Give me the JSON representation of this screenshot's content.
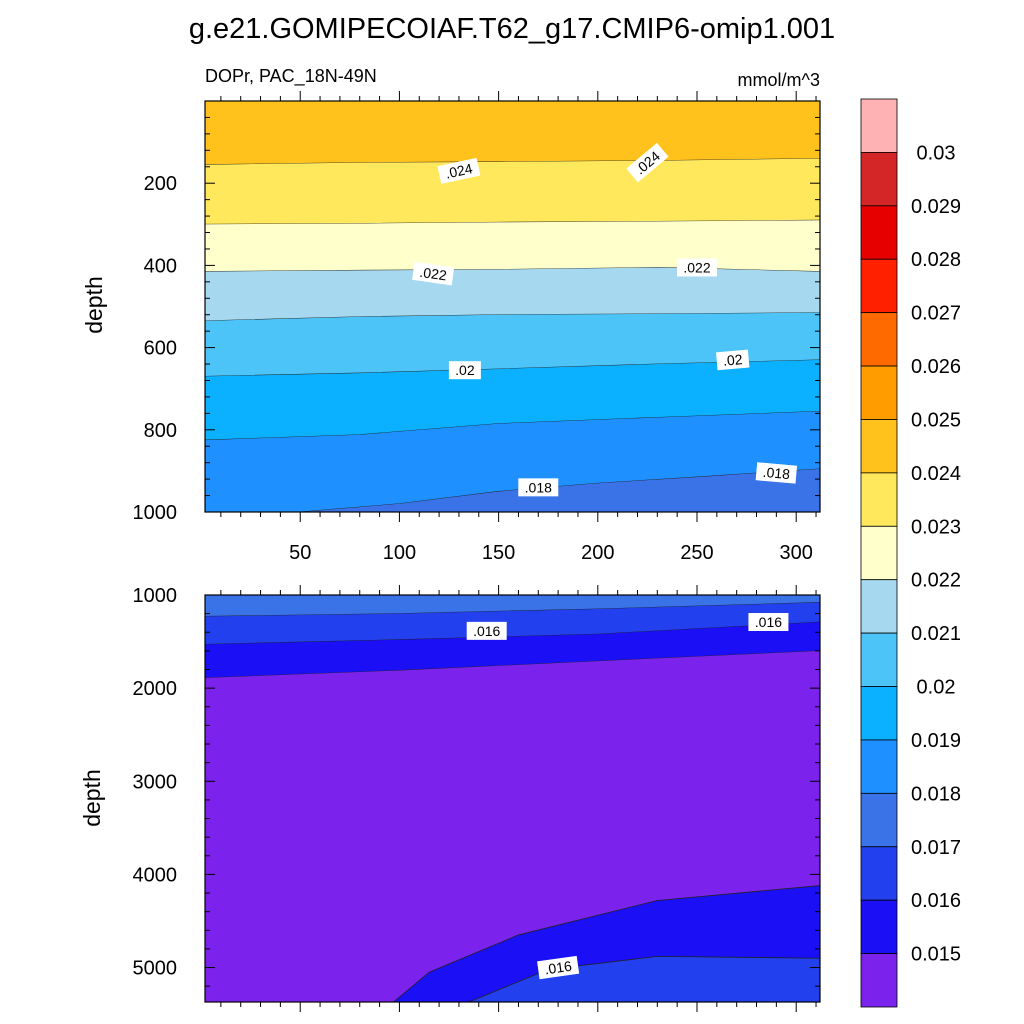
{
  "figure": {
    "title": "g.e21.GOMIPECOIAF.T62_g17.CMIP6-omip1.001"
  },
  "chart_data": {
    "type": "contour",
    "variable_label": "DOPr, PAC_18N-49N",
    "units_label": "mmol/m^3",
    "ylabel": "depth",
    "x_range": [
      2,
      312
    ],
    "x_ticks": [
      "50",
      "100",
      "150",
      "200",
      "250",
      "300"
    ],
    "x_tick_values": [
      50,
      100,
      150,
      200,
      250,
      300
    ],
    "colorbar": {
      "labels": [
        "0.03",
        "0.029",
        "0.028",
        "0.027",
        "0.026",
        "0.025",
        "0.024",
        "0.023",
        "0.022",
        "0.021",
        "0.02",
        "0.019",
        "0.018",
        "0.017",
        "0.016",
        "0.015"
      ],
      "colors": [
        "#ffb2b4",
        "#d42626",
        "#e60000",
        "#ff2000",
        "#ff6a00",
        "#ff9d00",
        "#ffc21c",
        "#ffe85c",
        "#ffffcc",
        "#a6d8ef",
        "#4dc4f7",
        "#0bb0ff",
        "#1e90ff",
        "#3a72e8",
        "#2240ee",
        "#1a0ff5",
        "#7b22ec"
      ]
    },
    "panels": [
      {
        "name": "upper",
        "y_range": [
          0,
          1000
        ],
        "y_ticks": [
          "200",
          "400",
          "600",
          "800",
          "1000"
        ],
        "y_tick_values": [
          200,
          400,
          600,
          800,
          1000
        ],
        "bands": [
          {
            "color": "#ffc21c",
            "lower_boundary": [
              [
                2,
                155
              ],
              [
                80,
                150
              ],
              [
                150,
                148
              ],
              [
                230,
                145
              ],
              [
                312,
                140
              ]
            ]
          },
          {
            "color": "#ffe85c",
            "lower_boundary": [
              [
                2,
                300
              ],
              [
                80,
                298
              ],
              [
                150,
                295
              ],
              [
                230,
                293
              ],
              [
                312,
                290
              ]
            ]
          },
          {
            "color": "#ffffcc",
            "lower_boundary": [
              [
                2,
                415
              ],
              [
                80,
                412
              ],
              [
                150,
                410
              ],
              [
                230,
                405
              ],
              [
                312,
                415
              ]
            ]
          },
          {
            "color": "#a6d8ef",
            "lower_boundary": [
              [
                2,
                535
              ],
              [
                80,
                525
              ],
              [
                150,
                520
              ],
              [
                230,
                518
              ],
              [
                312,
                515
              ]
            ]
          },
          {
            "color": "#4dc4f7",
            "lower_boundary": [
              [
                2,
                670
              ],
              [
                80,
                662
              ],
              [
                150,
                652
              ],
              [
                230,
                640
              ],
              [
                312,
                630
              ]
            ]
          },
          {
            "color": "#0bb0ff",
            "lower_boundary": [
              [
                2,
                825
              ],
              [
                80,
                812
              ],
              [
                150,
                785
              ],
              [
                230,
                770
              ],
              [
                312,
                755
              ]
            ]
          },
          {
            "color": "#1e90ff",
            "lower_boundary": [
              [
                2,
                1000
              ],
              [
                50,
                1000
              ],
              [
                100,
                980
              ],
              [
                150,
                950
              ],
              [
                200,
                930
              ],
              [
                250,
                915
              ],
              [
                312,
                895
              ]
            ]
          },
          {
            "color": "#3a72e8",
            "lower_boundary": null
          }
        ],
        "labels": [
          {
            "text": ".024",
            "x": 130,
            "y": 170,
            "angle": -12
          },
          {
            "text": ".024",
            "x": 225,
            "y": 150,
            "angle": -40
          },
          {
            "text": ".022",
            "x": 117,
            "y": 420,
            "angle": 8
          },
          {
            "text": ".022",
            "x": 250,
            "y": 405,
            "angle": 0
          },
          {
            "text": ".02",
            "x": 133,
            "y": 655,
            "angle": 0
          },
          {
            "text": ".02",
            "x": 268,
            "y": 630,
            "angle": -5
          },
          {
            "text": ".018",
            "x": 170,
            "y": 940,
            "angle": 0
          },
          {
            "text": ".018",
            "x": 290,
            "y": 905,
            "angle": 5
          }
        ]
      },
      {
        "name": "lower",
        "y_range": [
          1000,
          5370
        ],
        "y_ticks": [
          "1000",
          "2000",
          "3000",
          "4000",
          "5000"
        ],
        "y_tick_values": [
          1000,
          2000,
          3000,
          4000,
          5000
        ],
        "bands": [
          {
            "color": "#3a72e8",
            "lower_boundary": [
              [
                2,
                1230
              ],
              [
                100,
                1200
              ],
              [
                200,
                1150
              ],
              [
                312,
                1080
              ]
            ]
          },
          {
            "color": "#2240ee",
            "lower_boundary": [
              [
                2,
                1530
              ],
              [
                100,
                1480
              ],
              [
                200,
                1420
              ],
              [
                312,
                1290
              ]
            ]
          },
          {
            "color": "#1a0ff5",
            "lower_boundary": [
              [
                2,
                1890
              ],
              [
                100,
                1810
              ],
              [
                200,
                1710
              ],
              [
                312,
                1600
              ]
            ]
          },
          {
            "color": "#7b22ec",
            "lower_boundary": null
          }
        ],
        "overlays": [
          {
            "color": "#1a0ff5",
            "outline": [
              [
                97,
                5370
              ],
              [
                115,
                5050
              ],
              [
                160,
                4650
              ],
              [
                230,
                4280
              ],
              [
                312,
                4120
              ],
              [
                312,
                5370
              ]
            ]
          },
          {
            "color": "#2240ee",
            "outline": [
              [
                135,
                5370
              ],
              [
                175,
                5020
              ],
              [
                230,
                4880
              ],
              [
                312,
                4900
              ],
              [
                312,
                5370
              ]
            ]
          }
        ],
        "labels": [
          {
            "text": ".016",
            "x": 144,
            "y": 1385,
            "angle": 0
          },
          {
            "text": ".016",
            "x": 286,
            "y": 1290,
            "angle": 0
          },
          {
            "text": ".016",
            "x": 180,
            "y": 5000,
            "angle": -8
          }
        ]
      }
    ]
  }
}
